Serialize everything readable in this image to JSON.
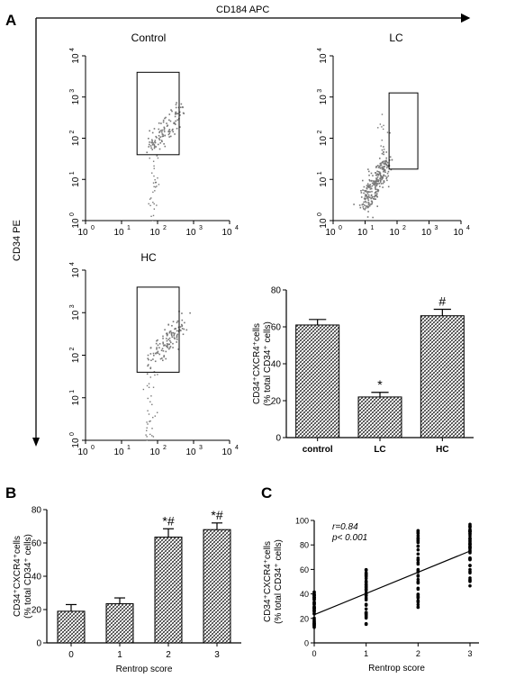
{
  "panels": {
    "A": "A",
    "B": "B",
    "C": "C"
  },
  "flow": {
    "x_axis_label": "CD184 APC",
    "y_axis_label": "CD34 PE",
    "tick_labels": [
      "10",
      "10",
      "10",
      "10",
      "10"
    ],
    "tick_exponents": [
      "0",
      "1",
      "2",
      "3",
      "4"
    ],
    "plots": [
      {
        "id": "control",
        "title": "Control",
        "gate": {
          "x": [
            1.43,
            2.6
          ],
          "y": [
            1.6,
            3.6
          ]
        },
        "cluster": {
          "cx": 2.2,
          "cy": 2.2,
          "n": 110,
          "spread": 0.16,
          "slope": 1.0,
          "len": 0.9
        },
        "tail": {
          "x": 1.85,
          "ymin": 0.0,
          "ymax": 1.6,
          "n": 30
        }
      },
      {
        "id": "lc",
        "title": "LC",
        "gate": {
          "x": [
            1.75,
            2.65
          ],
          "y": [
            1.25,
            3.1
          ]
        },
        "cluster": {
          "cx": 1.3,
          "cy": 0.9,
          "n": 260,
          "spread": 0.18,
          "slope": 1.6,
          "len": 0.7
        },
        "tail": {
          "x": 1.55,
          "ymin": 1.0,
          "ymax": 2.6,
          "n": 18
        }
      },
      {
        "id": "hc",
        "title": "HC",
        "gate": {
          "x": [
            1.43,
            2.6
          ],
          "y": [
            1.6,
            3.6
          ]
        },
        "cluster": {
          "cx": 2.2,
          "cy": 2.3,
          "n": 120,
          "spread": 0.16,
          "slope": 1.0,
          "len": 0.95
        },
        "tail": {
          "x": 1.8,
          "ymin": 0.0,
          "ymax": 1.6,
          "n": 30
        }
      }
    ]
  },
  "chart_data": [
    {
      "id": "A-bar",
      "type": "bar",
      "categories": [
        "control",
        "LC",
        "HC"
      ],
      "values": [
        61,
        22,
        66
      ],
      "errors": [
        3,
        2.5,
        3.5
      ],
      "annotations": [
        "",
        "*",
        "#"
      ],
      "ylabel_line1": "CD34⁺CXCR4⁺cells",
      "ylabel_line2": "(% total CD34⁺ cells)",
      "ylim": [
        0,
        80
      ],
      "yticks": [
        0,
        20,
        40,
        60,
        80
      ]
    },
    {
      "id": "B-bar",
      "type": "bar",
      "categories": [
        "0",
        "1",
        "2",
        "3"
      ],
      "values": [
        19,
        23.5,
        63.5,
        68
      ],
      "errors": [
        4,
        3.5,
        5,
        4
      ],
      "annotations": [
        "",
        "",
        "*#",
        "*#"
      ],
      "xlabel": "Rentrop score",
      "ylabel_line1": "CD34⁺CXCR4⁺cells",
      "ylabel_line2": "(% total CD34⁺ cells)",
      "ylim": [
        0,
        80
      ],
      "yticks": [
        0,
        20,
        40,
        60,
        80
      ]
    },
    {
      "id": "C-scatter",
      "type": "scatter",
      "x_groups": [
        0,
        1,
        2,
        3
      ],
      "y_ranges": [
        [
          12,
          42
        ],
        [
          15,
          60
        ],
        [
          28,
          92
        ],
        [
          45,
          98
        ]
      ],
      "points_per_group": 45,
      "fit_line": {
        "x": [
          0,
          3
        ],
        "y": [
          23,
          75
        ]
      },
      "annotation_r": "r=0.84",
      "annotation_p": "p< 0.001",
      "xlabel": "Rentrop score",
      "ylabel_line1": "CD34⁺CXCR4⁺cells",
      "ylabel_line2": "(% total CD34⁺ cells)",
      "xlim": [
        0,
        3
      ],
      "ylim": [
        0,
        100
      ],
      "xticks": [
        0,
        1,
        2,
        3
      ],
      "yticks": [
        0,
        20,
        40,
        60,
        80,
        100
      ]
    }
  ]
}
